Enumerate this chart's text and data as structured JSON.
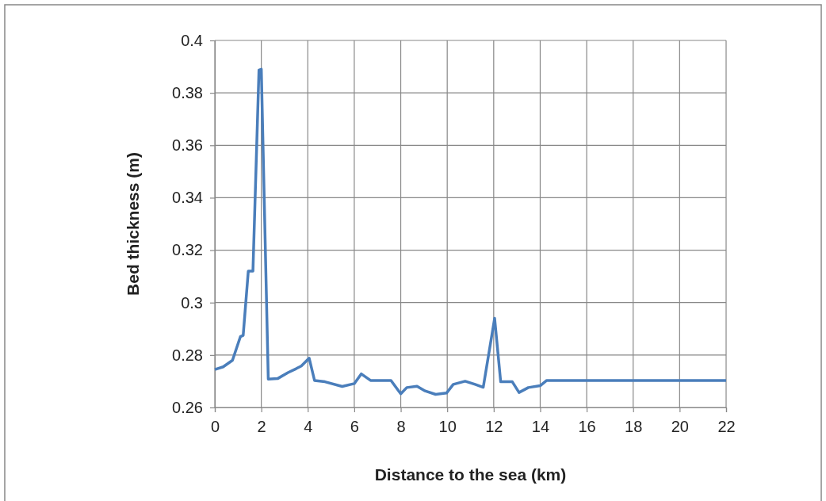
{
  "chart_data": {
    "type": "line",
    "xlabel": "Distance to the sea (km)",
    "ylabel": "Bed thickness (m)",
    "xlim": [
      0,
      22
    ],
    "xticks": [
      0,
      2,
      4,
      6,
      8,
      10,
      12,
      14,
      16,
      18,
      20,
      22
    ],
    "ylim": [
      0.26,
      0.4
    ],
    "yticks": [
      0.26,
      0.28,
      0.3,
      0.32,
      0.34,
      0.36,
      0.38,
      0.4
    ],
    "grid": true,
    "marker": "none",
    "line_style": "solid",
    "series": [
      {
        "color": "#4a7ebb",
        "x": [
          0,
          0.36,
          0.76,
          1.1,
          1.22,
          1.44,
          1.64,
          1.9,
          2.0,
          2.3,
          2.7,
          3.15,
          3.5,
          3.72,
          4.06,
          4.29,
          4.74,
          5.48,
          6.0,
          6.3,
          6.7,
          7.58,
          8.0,
          8.26,
          8.7,
          9.05,
          9.5,
          9.97,
          10.26,
          10.77,
          11.2,
          11.55,
          12.04,
          12.3,
          12.8,
          13.09,
          13.49,
          14.0,
          14.28,
          22
        ],
        "values": [
          0.2745,
          0.2755,
          0.278,
          0.287,
          0.2875,
          0.312,
          0.312,
          0.3887,
          0.389,
          0.2708,
          0.271,
          0.2733,
          0.2748,
          0.2758,
          0.2788,
          0.2703,
          0.2698,
          0.268,
          0.2691,
          0.2728,
          0.2703,
          0.2703,
          0.2652,
          0.2676,
          0.2681,
          0.2663,
          0.265,
          0.2655,
          0.2688,
          0.27,
          0.2688,
          0.2677,
          0.294,
          0.2698,
          0.2698,
          0.2657,
          0.2676,
          0.2683,
          0.2703,
          0.2703
        ]
      }
    ]
  }
}
